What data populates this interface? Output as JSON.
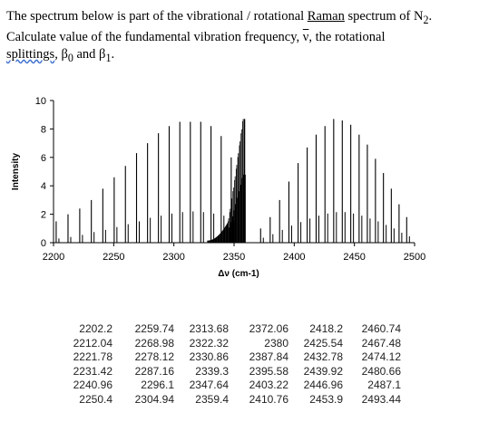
{
  "question": {
    "line1_a": "The spectrum below is part of the vibrational / rotational ",
    "line1_raman": "Raman",
    "line1_b": " spectrum of N",
    "line1_sub": "2",
    "line1_c": ".",
    "line2_a": "Calculate value of the fundamental vibration frequency,  ",
    "line2_nu": "ν",
    "line2_b": ", the rotational",
    "line3_splittings": "splittings",
    "line3_a": ", β",
    "line3_sub0": "0",
    "line3_b": " and β",
    "line3_sub1": "1",
    "line3_c": "."
  },
  "chart_data": {
    "type": "bar",
    "title": "",
    "xlabel": "Δν (cm-1)",
    "ylabel": "Intensity",
    "xlim": [
      2200,
      2500
    ],
    "ylim": [
      0,
      10
    ],
    "xticks": [
      "2200",
      "2250",
      "2300",
      "2350",
      "2400",
      "2450",
      "2500"
    ],
    "yticks": [
      "0",
      "2",
      "4",
      "6",
      "8",
      "10"
    ],
    "left_branch": {
      "x": [
        2202.2,
        2212.04,
        2221.78,
        2231.42,
        2240.96,
        2250.4,
        2259.74,
        2268.98,
        2278.12,
        2287.16,
        2296.1,
        2304.94,
        2313.68,
        2322.32,
        2330.86,
        2339.3,
        2347.64
      ],
      "strong": [
        1.5,
        2.0,
        2.4,
        3.0,
        3.8,
        4.6,
        5.4,
        6.3,
        7.0,
        7.7,
        8.2,
        8.5,
        8.5,
        8.5,
        8.2,
        7.5,
        6.0
      ],
      "weak": [
        0.3,
        0.4,
        0.55,
        0.75,
        0.9,
        1.1,
        1.3,
        1.5,
        1.75,
        1.9,
        2.05,
        2.15,
        2.2,
        2.15,
        2.05,
        1.9,
        1.55
      ]
    },
    "right_branch": {
      "x": [
        2372.06,
        2380,
        2387.84,
        2395.58,
        2403.22,
        2410.76,
        2418.2,
        2425.54,
        2432.78,
        2439.92,
        2446.96,
        2453.9,
        2460.74,
        2467.48,
        2474.12,
        2480.66,
        2487.1,
        2493.44
      ],
      "strong": [
        1.0,
        1.8,
        3.0,
        4.3,
        5.6,
        6.7,
        7.6,
        8.2,
        8.7,
        8.6,
        8.3,
        7.6,
        6.9,
        5.9,
        4.9,
        3.8,
        2.7,
        1.8
      ],
      "weak": [
        0.35,
        0.6,
        0.9,
        1.2,
        1.45,
        1.7,
        1.9,
        2.05,
        2.15,
        2.15,
        2.05,
        1.9,
        1.7,
        1.5,
        1.25,
        1.0,
        0.7,
        0.45
      ]
    },
    "q_branch": {
      "x_start": 2328,
      "x_end": 2359.4,
      "peak": 8.7,
      "cluster_start": 2345
    }
  },
  "data_table": {
    "columns": [
      [
        "2202.2",
        "2212.04",
        "2221.78",
        "2231.42",
        "2240.96",
        "2250.4"
      ],
      [
        "2259.74",
        "2268.98",
        "2278.12",
        "2287.16",
        "2296.1",
        "2304.94"
      ],
      [
        "2313.68",
        "2322.32",
        "2330.86",
        "2339.3",
        "2347.64",
        "2359.4"
      ],
      [
        "2372.06",
        "2380",
        "2387.84",
        "2395.58",
        "2403.22",
        "2410.76"
      ],
      [
        "2418.2",
        "2425.54",
        "2432.78",
        "2439.92",
        "2446.96",
        "2453.9"
      ],
      [
        "2460.74",
        "2467.48",
        "2474.12",
        "2480.66",
        "2487.1",
        "2493.44"
      ]
    ]
  }
}
